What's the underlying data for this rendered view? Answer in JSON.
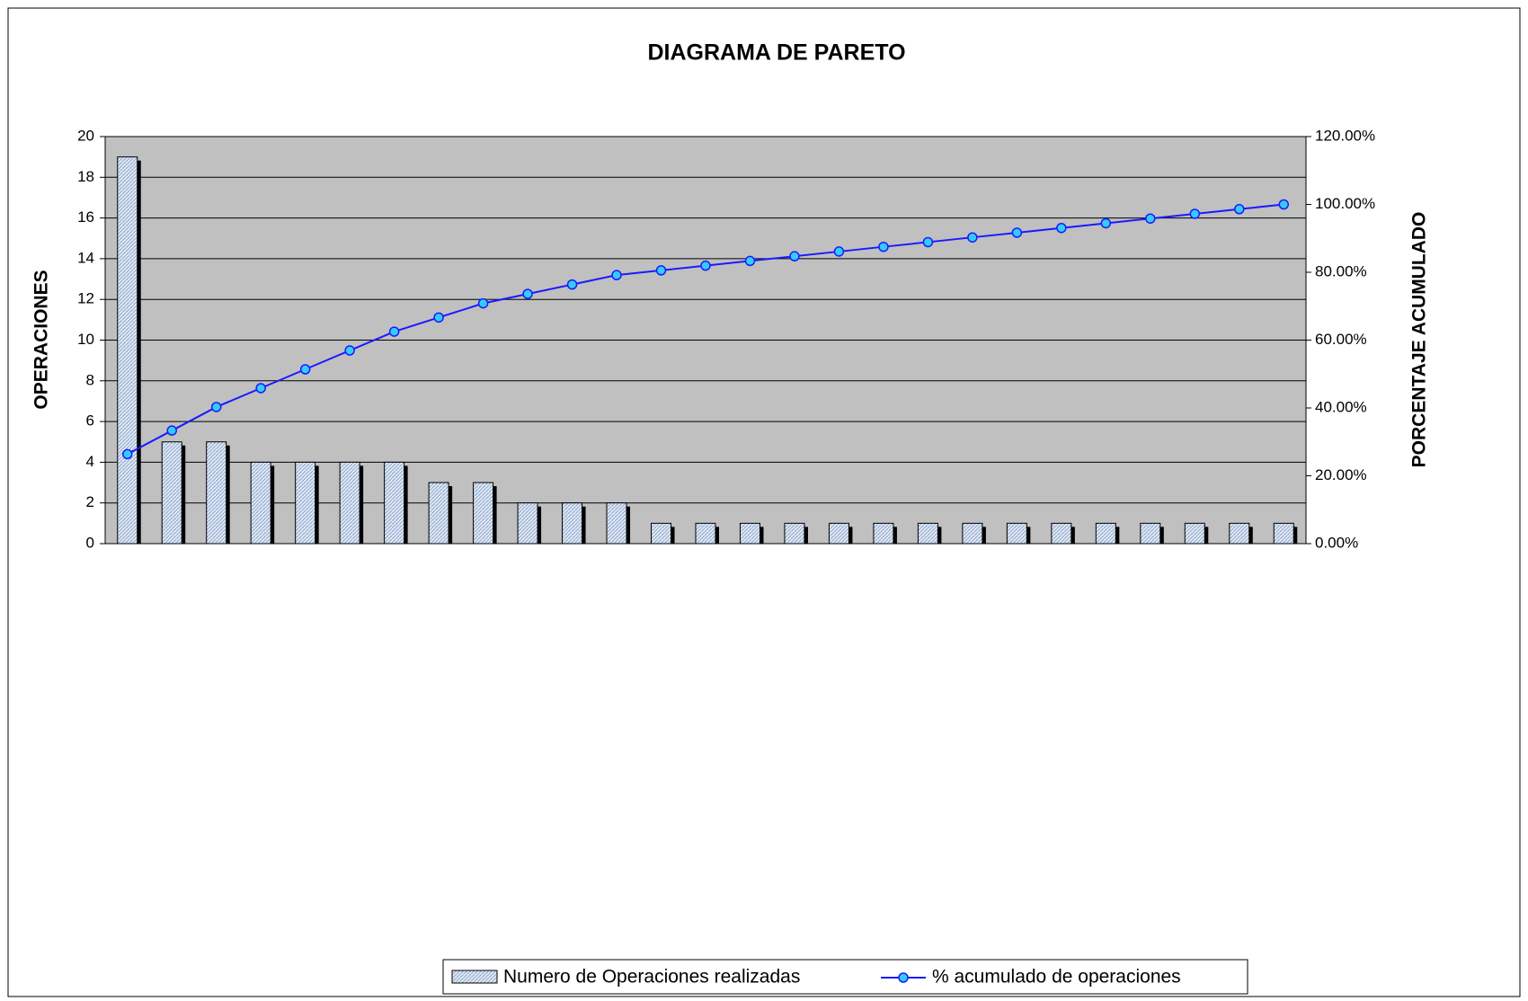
{
  "chart_data": {
    "type": "pareto",
    "title": "DIAGRAMA DE PARETO",
    "y_label": "OPERACIONES",
    "y2_label": "PORCENTAJE ACUMULADO",
    "categories": [
      null,
      null,
      null,
      null,
      null,
      null,
      null,
      null,
      null,
      null,
      null,
      null,
      null,
      null,
      null,
      null,
      null,
      null,
      null,
      null,
      null,
      null,
      null,
      null,
      null,
      null,
      null
    ],
    "series": [
      {
        "name": "Numero de Operaciones realizadas",
        "type": "bar",
        "color": "#c6d6ee",
        "values": [
          19,
          5,
          5,
          4,
          4,
          4,
          4,
          3,
          3,
          2,
          2,
          2,
          1,
          1,
          1,
          1,
          1,
          1,
          1,
          1,
          1,
          1,
          1,
          1,
          1,
          1,
          1
        ]
      },
      {
        "name": "% acumulado de operaciones",
        "type": "line",
        "axis": "y2",
        "color": "#1a1aff",
        "values": [
          26.39,
          33.33,
          40.28,
          45.83,
          51.39,
          56.94,
          62.5,
          66.67,
          70.83,
          73.61,
          76.39,
          79.17,
          80.56,
          81.94,
          83.33,
          84.72,
          86.11,
          87.5,
          88.89,
          90.28,
          91.67,
          93.06,
          94.44,
          95.83,
          97.22,
          98.61,
          100
        ]
      }
    ],
    "ylim": [
      0,
      20
    ],
    "yticks": [
      0,
      2,
      4,
      6,
      8,
      10,
      12,
      14,
      16,
      18,
      20
    ],
    "y2lim": [
      0,
      120
    ],
    "y2ticks": [
      {
        "value": 0,
        "label": "0.00%"
      },
      {
        "value": 20,
        "label": "20.00%"
      },
      {
        "value": 40,
        "label": "40.00%"
      },
      {
        "value": 60,
        "label": "60.00%"
      },
      {
        "value": 80,
        "label": "80.00%"
      },
      {
        "value": 100,
        "label": "100.00%"
      },
      {
        "value": 120,
        "label": "120.00%"
      }
    ],
    "grid": true,
    "legend": "bottom"
  }
}
